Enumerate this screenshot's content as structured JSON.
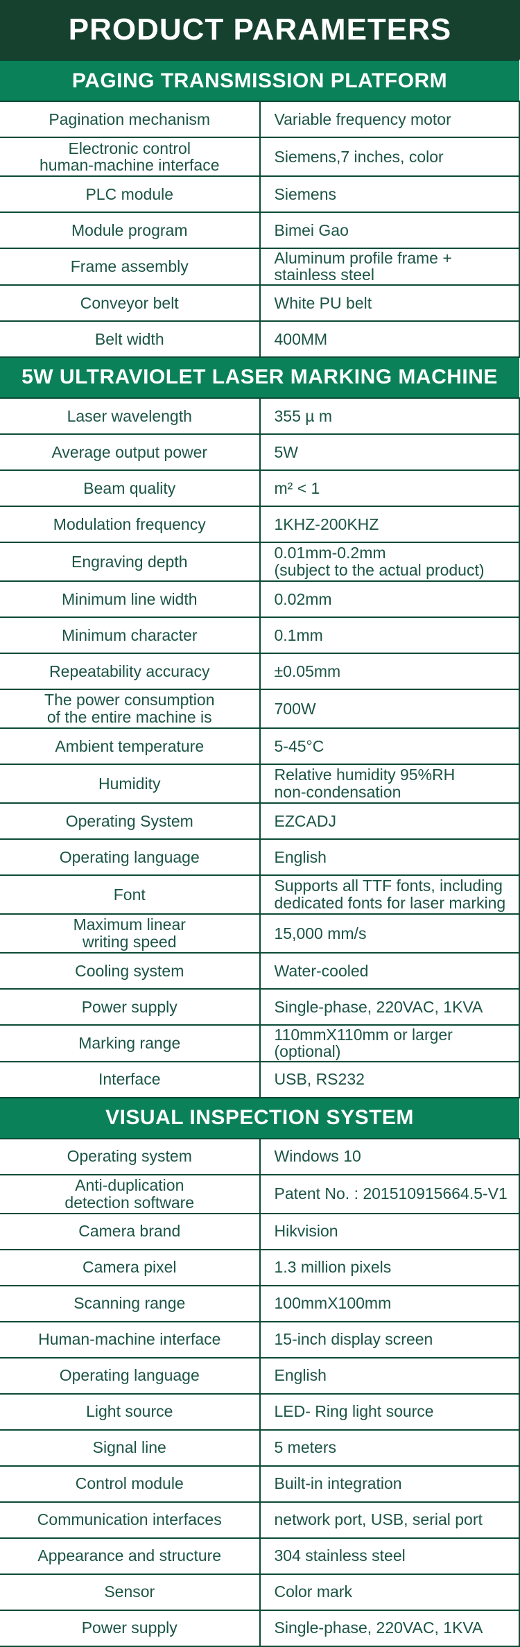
{
  "page": {
    "title": "PRODUCT PARAMETERS"
  },
  "colors": {
    "title_bar_bg": "#16412F",
    "section_band_bg": "#0A8159",
    "text_green": "#1C5445",
    "border_green": "#0B4A37",
    "title_text": "#FFFFFF"
  },
  "sections": [
    {
      "title": "PAGING TRANSMISSION PLATFORM",
      "rows": [
        {
          "label": "Pagination mechanism",
          "value": "Variable frequency motor"
        },
        {
          "label": "Electronic control\nhuman-machine interface",
          "value": "Siemens,7 inches, color"
        },
        {
          "label": "PLC module",
          "value": "Siemens"
        },
        {
          "label": "Module program",
          "value": "Bimei Gao"
        },
        {
          "label": "Frame assembly",
          "value": "Aluminum profile frame + stainless steel"
        },
        {
          "label": "Conveyor belt",
          "value": "White PU belt"
        },
        {
          "label": "Belt width",
          "value": "400MM"
        }
      ]
    },
    {
      "title": "5W ULTRAVIOLET LASER MARKING MACHINE",
      "rows": [
        {
          "label": "Laser wavelength",
          "value": "355 µ m"
        },
        {
          "label": "Average output power",
          "value": "5W"
        },
        {
          "label": "Beam quality",
          "value": "m² < 1"
        },
        {
          "label": "Modulation frequency",
          "value": "1KHZ-200KHZ"
        },
        {
          "label": "Engraving depth",
          "value": "0.01mm-0.2mm\n(subject to the actual product)"
        },
        {
          "label": "Minimum line width",
          "value": "0.02mm"
        },
        {
          "label": "Minimum character",
          "value": "0.1mm"
        },
        {
          "label": "Repeatability accuracy",
          "value": "±0.05mm"
        },
        {
          "label": "The power consumption\nof the entire machine is",
          "value": "700W"
        },
        {
          "label": "Ambient temperature",
          "value": "5-45°C"
        },
        {
          "label": "Humidity",
          "value": "Relative humidity 95%RH\nnon-condensation"
        },
        {
          "label": "Operating System",
          "value": "EZCADJ"
        },
        {
          "label": "Operating language",
          "value": "English"
        },
        {
          "label": "Font",
          "value": "Supports all TTF fonts, including\ndedicated fonts for laser marking"
        },
        {
          "label": "Maximum linear\nwriting speed",
          "value": "15,000 mm/s"
        },
        {
          "label": "Cooling system",
          "value": "Water-cooled"
        },
        {
          "label": "Power supply",
          "value": "Single-phase, 220VAC, 1KVA"
        },
        {
          "label": "Marking range",
          "value": "110mmX110mm or larger (optional)"
        },
        {
          "label": "Interface",
          "value": "USB, RS232"
        }
      ]
    },
    {
      "title": "VISUAL INSPECTION SYSTEM",
      "rows": [
        {
          "label": "Operating system",
          "value": "Windows 10"
        },
        {
          "label": "Anti-duplication\ndetection software",
          "value": "Patent No. : 201510915664.5-V1"
        },
        {
          "label": "Camera brand",
          "value": "Hikvision"
        },
        {
          "label": "Camera pixel",
          "value": "1.3 million pixels"
        },
        {
          "label": "Scanning range",
          "value": "100mmX100mm"
        },
        {
          "label": "Human-machine interface",
          "value": "15-inch display screen"
        },
        {
          "label": "Operating language",
          "value": "English"
        },
        {
          "label": "Light source",
          "value": "LED- Ring light source"
        },
        {
          "label": "Signal line",
          "value": "5 meters"
        },
        {
          "label": "Control module",
          "value": "Built-in integration"
        },
        {
          "label": "Communication interfaces",
          "value": "network port, USB, serial port"
        },
        {
          "label": "Appearance and structure",
          "value": "304 stainless steel"
        },
        {
          "label": "Sensor",
          "value": "Color mark"
        },
        {
          "label": "Power supply",
          "value": "Single-phase, 220VAC, 1KVA"
        }
      ]
    }
  ]
}
